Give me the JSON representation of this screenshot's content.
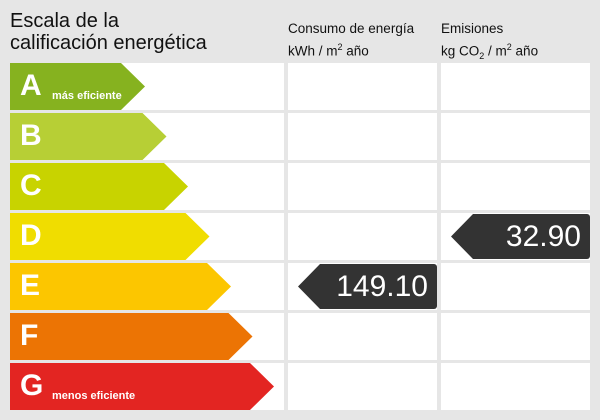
{
  "title": [
    "Escala de la",
    "calificación energética"
  ],
  "columns": {
    "consumo": {
      "line1": "Consumo de energía",
      "unit_pre": "kWh / m",
      "unit_sup": "2",
      "unit_post": " año"
    },
    "emisiones": {
      "line1": "Emisiones",
      "unit_pre": "kg CO",
      "unit_sub": "2",
      "unit_mid": " / m",
      "unit_sup": "2",
      "unit_post": " año"
    }
  },
  "ratings": [
    {
      "letter": "A",
      "label": "más eficiente",
      "color": "#86b21f"
    },
    {
      "letter": "B",
      "label": "",
      "color": "#b7cf35"
    },
    {
      "letter": "C",
      "label": "",
      "color": "#c8d300"
    },
    {
      "letter": "D",
      "label": "",
      "color": "#f0dd00"
    },
    {
      "letter": "E",
      "label": "",
      "color": "#fcc600"
    },
    {
      "letter": "F",
      "label": "",
      "color": "#ec7404"
    },
    {
      "letter": "G",
      "label": "menos eficiente",
      "color": "#e32522"
    }
  ],
  "consumo_value": {
    "rating": "E",
    "value": "149.10"
  },
  "emisiones_value": {
    "rating": "D",
    "value": "32.90"
  }
}
